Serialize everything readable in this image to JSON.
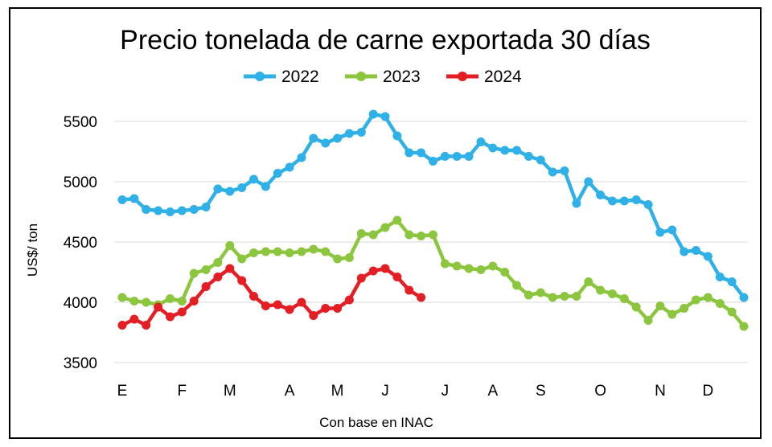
{
  "chart_data": {
    "type": "line",
    "title": "Precio tonelada de carne exportada 30 días",
    "xlabel": "Con base en INAC",
    "ylabel": "US$/ ton",
    "ylim": [
      3500,
      5650
    ],
    "yticks": [
      3500,
      4000,
      4500,
      5000,
      5500
    ],
    "grid": "horizontal",
    "legend_position": "top",
    "month_labels": [
      {
        "label": "E",
        "week": 0
      },
      {
        "label": "F",
        "week": 5
      },
      {
        "label": "M",
        "week": 9
      },
      {
        "label": "A",
        "week": 14
      },
      {
        "label": "M",
        "week": 18
      },
      {
        "label": "J",
        "week": 22
      },
      {
        "label": "J",
        "week": 27
      },
      {
        "label": "A",
        "week": 31
      },
      {
        "label": "S",
        "week": 35
      },
      {
        "label": "O",
        "week": 40
      },
      {
        "label": "N",
        "week": 45
      },
      {
        "label": "D",
        "week": 49
      }
    ],
    "series": [
      {
        "name": "2022",
        "color": "#2fb0e6",
        "values": [
          4850,
          4860,
          4770,
          4760,
          4750,
          4760,
          4770,
          4790,
          4940,
          4920,
          4950,
          5020,
          4960,
          5070,
          5120,
          5200,
          5360,
          5320,
          5360,
          5400,
          5410,
          5560,
          5540,
          5380,
          5240,
          5240,
          5170,
          5210,
          5210,
          5210,
          5330,
          5280,
          5260,
          5260,
          5210,
          5180,
          5080,
          5090,
          4820,
          5000,
          4890,
          4840,
          4840,
          4850,
          4810,
          4580,
          4600,
          4420,
          4430,
          4380,
          4210,
          4170,
          4040
        ]
      },
      {
        "name": "2023",
        "color": "#8cc63f",
        "values": [
          4040,
          4010,
          4000,
          3980,
          4030,
          4010,
          4240,
          4270,
          4330,
          4470,
          4360,
          4410,
          4420,
          4420,
          4410,
          4420,
          4440,
          4420,
          4360,
          4370,
          4570,
          4560,
          4620,
          4680,
          4560,
          4550,
          4560,
          4320,
          4300,
          4280,
          4270,
          4300,
          4250,
          4140,
          4060,
          4080,
          4040,
          4050,
          4050,
          4170,
          4100,
          4070,
          4030,
          3960,
          3850,
          3970,
          3900,
          3950,
          4020,
          4040,
          3990,
          3920,
          3800
        ]
      },
      {
        "name": "2024",
        "color": "#e31e24",
        "values": [
          3810,
          3860,
          3810,
          3960,
          3880,
          3920,
          4010,
          4130,
          4210,
          4280,
          4180,
          4050,
          3970,
          3980,
          3940,
          4000,
          3890,
          3950,
          3950,
          4020,
          4200,
          4260,
          4280,
          4210,
          4100,
          4040
        ]
      }
    ]
  }
}
